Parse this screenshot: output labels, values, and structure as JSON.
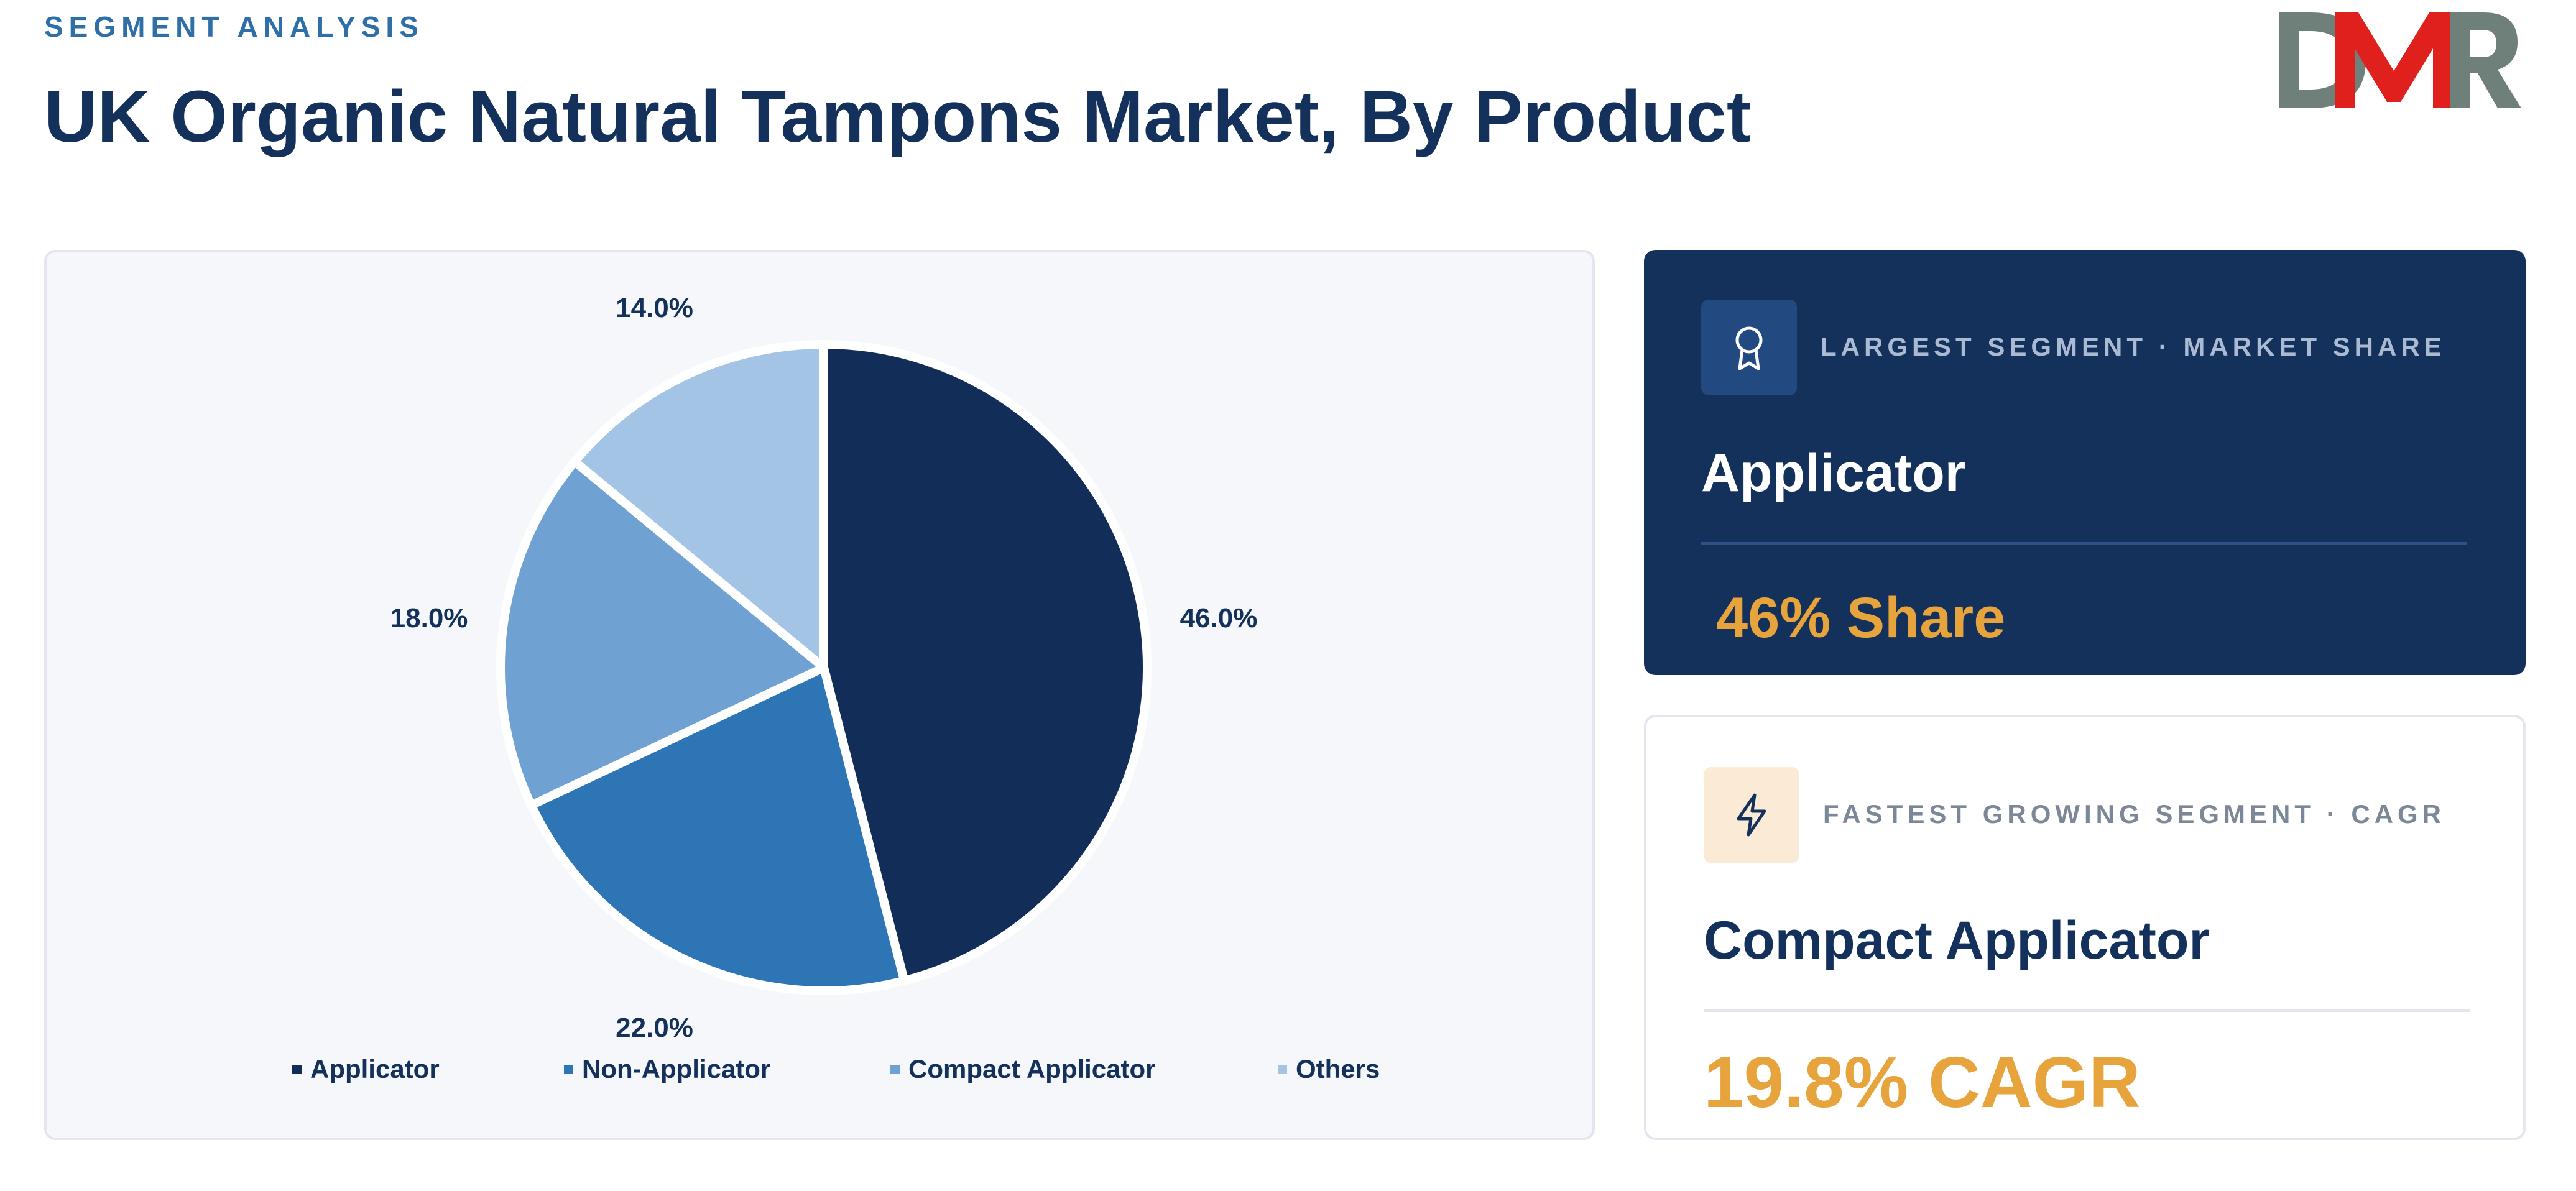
{
  "header": {
    "eyebrow": "SEGMENT ANALYSIS",
    "title": "UK Organic Natural Tampons Market, By Product",
    "logo_text": "DMR"
  },
  "colors": {
    "navy": "#14315c",
    "accent_gold": "#e8a43c",
    "logo_grey": "#6e8079",
    "logo_red": "#e0201c"
  },
  "chart_data": {
    "type": "pie",
    "categories": [
      "Applicator",
      "Non-Applicator",
      "Compact Applicator",
      "Others"
    ],
    "values": [
      46.0,
      22.0,
      18.0,
      14.0
    ],
    "labels": [
      "46.0%",
      "22.0%",
      "18.0%",
      "14.0%"
    ],
    "colors": [
      "#132d59",
      "#2e75b5",
      "#6fa2d2",
      "#a3c4e4"
    ],
    "legend_position": "bottom"
  },
  "cards": {
    "largest": {
      "icon": "award-ribbon-icon",
      "label": "LARGEST SEGMENT  ·  MARKET SHARE",
      "name": "Applicator",
      "metric": "46% Share"
    },
    "fastest": {
      "icon": "lightning-bolt-icon",
      "label": "FASTEST GROWING SEGMENT  ·  CAGR",
      "name": "Compact Applicator",
      "metric": "19.8% CAGR"
    }
  }
}
